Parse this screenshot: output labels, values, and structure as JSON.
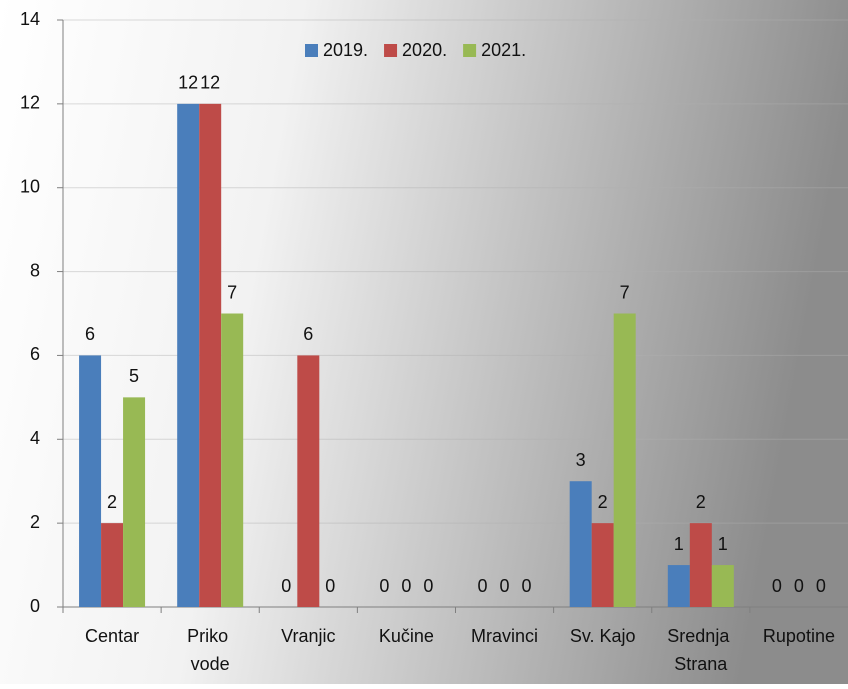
{
  "chart_data": {
    "type": "bar",
    "categories": [
      "Centar",
      "Priko vode",
      "Vranjic",
      "Kučine",
      "Mravinci",
      "Sv. Kajo",
      "Srednja Strana",
      "Rupotine"
    ],
    "series": [
      {
        "name": "2019.",
        "color": "#4a7ebb",
        "values": [
          6,
          12,
          0,
          0,
          0,
          3,
          1,
          0
        ]
      },
      {
        "name": "2020.",
        "color": "#be4b48",
        "values": [
          2,
          12,
          6,
          0,
          0,
          2,
          2,
          0
        ]
      },
      {
        "name": "2021.",
        "color": "#98b954",
        "values": [
          5,
          7,
          0,
          0,
          0,
          7,
          1,
          0
        ]
      }
    ],
    "ylim": [
      0,
      14
    ],
    "yticks": [
      0,
      2,
      4,
      6,
      8,
      10,
      12,
      14
    ],
    "grid": true,
    "legend": "top"
  }
}
